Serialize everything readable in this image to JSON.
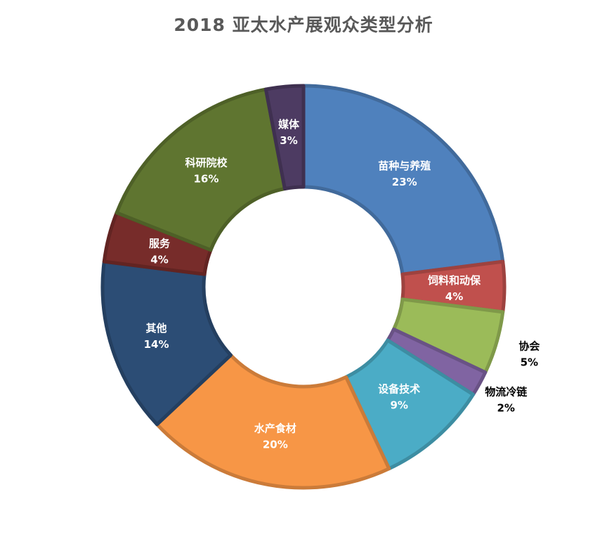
{
  "chart_data": {
    "type": "pie",
    "title": "2018 亚太水产展观众类型分析",
    "legend": "none",
    "slices": [
      {
        "label": "苗种与养殖",
        "value": 23,
        "value_label": "23%",
        "color": "#4F81BD",
        "label_color": "#FFFFFF"
      },
      {
        "label": "饲料和动保",
        "value": 4,
        "value_label": "4%",
        "color": "#C0504D",
        "label_color": "#FFFFFF"
      },
      {
        "label": "协会",
        "value": 5,
        "value_label": "5%",
        "color": "#9BBB59",
        "label_color": "#000000"
      },
      {
        "label": "物流冷链",
        "value": 2,
        "value_label": "2%",
        "color": "#8064A2",
        "label_color": "#000000"
      },
      {
        "label": "设备技术",
        "value": 9,
        "value_label": "9%",
        "color": "#4BACC6",
        "label_color": "#FFFFFF"
      },
      {
        "label": "水产食材",
        "value": 20,
        "value_label": "20%",
        "color": "#F79646",
        "label_color": "#FFFFFF"
      },
      {
        "label": "其他",
        "value": 14,
        "value_label": "14%",
        "color": "#2C4D75",
        "label_color": "#FFFFFF"
      },
      {
        "label": "服务",
        "value": 4,
        "value_label": "4%",
        "color": "#772C2A",
        "label_color": "#FFFFFF"
      },
      {
        "label": "科研院校",
        "value": 16,
        "value_label": "16%",
        "color": "#5F7530",
        "label_color": "#FFFFFF"
      },
      {
        "label": "媒体",
        "value": 3,
        "value_label": "3%",
        "color": "#4D3B62",
        "label_color": "#FFFFFF"
      }
    ]
  }
}
